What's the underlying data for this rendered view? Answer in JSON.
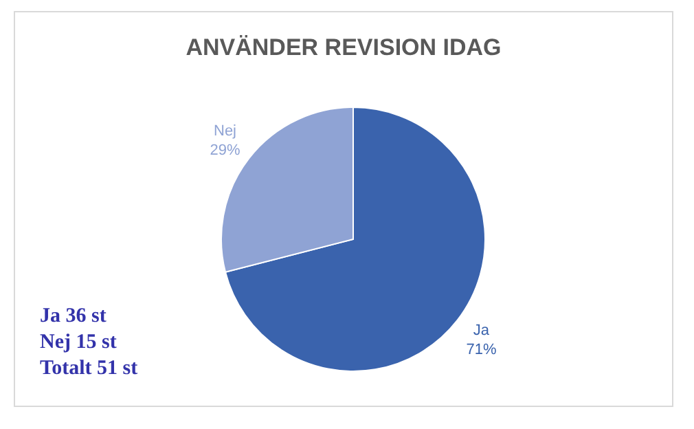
{
  "chart_data": {
    "type": "pie",
    "title": "ANVÄNDER REVISION IDAG",
    "categories": [
      "Ja",
      "Nej"
    ],
    "values": [
      71,
      29
    ],
    "value_labels": [
      "71%",
      "29%"
    ],
    "colors": [
      "#3a63ad",
      "#8fa3d4"
    ],
    "annotations": [
      "Ja 36 st",
      "Nej 15 st",
      "Totalt 51 st"
    ]
  }
}
